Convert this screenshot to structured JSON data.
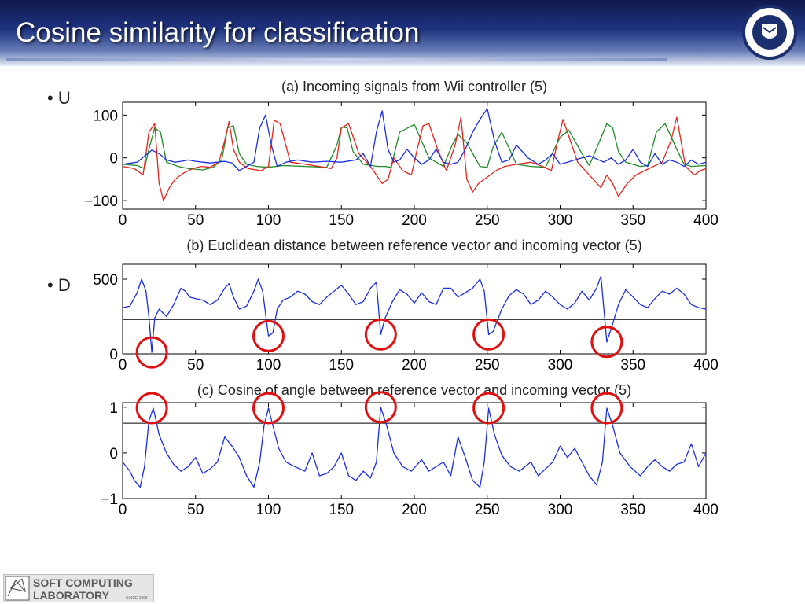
{
  "slide": {
    "title": "Cosine similarity for classification",
    "bullets": [
      {
        "marker": "•",
        "text": "U"
      },
      {
        "marker": "•",
        "text": "D"
      }
    ],
    "footer": {
      "lab_line1": "SOFT COMPUTING",
      "lab_line2": "LABORATORY",
      "since": "SINCE 1995"
    }
  },
  "colors": {
    "signal_red": "#e8231c",
    "signal_green": "#1f8a26",
    "signal_blue": "#1a2ee6",
    "circle": "#e01010",
    "header_dark": "#0f1a4d"
  },
  "chart_data": [
    {
      "type": "line",
      "title": "(a) Incoming signals from Wii controller (5)",
      "xlim": [
        0,
        400
      ],
      "ylim": [
        -120,
        130
      ],
      "xticks": [
        0,
        50,
        100,
        150,
        200,
        250,
        300,
        350,
        400
      ],
      "yticks": [
        -100,
        0,
        100
      ],
      "ytick_labels": [
        "−100",
        "0",
        "100"
      ],
      "series": [
        {
          "color": "#1f8a26",
          "x": [
            0,
            10,
            15,
            18,
            22,
            26,
            30,
            38,
            45,
            55,
            62,
            68,
            72,
            76,
            80,
            85,
            92,
            100,
            110,
            125,
            140,
            147,
            150,
            154,
            158,
            165,
            175,
            180,
            184,
            190,
            200,
            210,
            220,
            226,
            230,
            236,
            245,
            250,
            254,
            260,
            270,
            280,
            290,
            296,
            300,
            306,
            315,
            320,
            326,
            332,
            336,
            340,
            345,
            355,
            360,
            366,
            372,
            380,
            385,
            390,
            400
          ],
          "y": [
            -15,
            -18,
            -25,
            20,
            70,
            60,
            -10,
            -20,
            -25,
            -28,
            -22,
            -5,
            70,
            75,
            10,
            -15,
            -20,
            -22,
            -18,
            -20,
            -22,
            30,
            72,
            70,
            15,
            -15,
            -20,
            -20,
            -22,
            60,
            78,
            0,
            -20,
            30,
            55,
            35,
            -20,
            -22,
            25,
            60,
            -15,
            -20,
            -22,
            20,
            48,
            65,
            10,
            -18,
            30,
            80,
            70,
            15,
            -10,
            -20,
            -18,
            60,
            80,
            20,
            -15,
            -20,
            -18
          ]
        },
        {
          "color": "#e8231c",
          "x": [
            0,
            8,
            14,
            18,
            22,
            25,
            28,
            32,
            36,
            42,
            48,
            54,
            60,
            66,
            70,
            73,
            76,
            80,
            86,
            95,
            100,
            104,
            108,
            115,
            125,
            135,
            143,
            147,
            150,
            155,
            162,
            170,
            174,
            178,
            182,
            186,
            192,
            198,
            202,
            206,
            210,
            216,
            222,
            228,
            232,
            236,
            240,
            244,
            248,
            252,
            256,
            262,
            270,
            280,
            288,
            294,
            298,
            302,
            306,
            312,
            320,
            328,
            332,
            336,
            340,
            346,
            352,
            358,
            364,
            370,
            376,
            380,
            386,
            392,
            396,
            400
          ],
          "y": [
            -20,
            -25,
            -40,
            60,
            80,
            -60,
            -100,
            -70,
            -50,
            -35,
            -25,
            -20,
            -22,
            -10,
            40,
            85,
            20,
            -10,
            -25,
            -30,
            -20,
            88,
            80,
            -10,
            -15,
            -20,
            -25,
            0,
            70,
            80,
            10,
            -20,
            -40,
            -60,
            -50,
            0,
            -30,
            -40,
            20,
            75,
            80,
            20,
            -30,
            30,
            95,
            -50,
            -80,
            -60,
            -50,
            -40,
            -30,
            -20,
            -15,
            -10,
            -20,
            -30,
            35,
            90,
            50,
            -10,
            -40,
            -70,
            -40,
            -60,
            -90,
            -60,
            -40,
            -30,
            -20,
            -10,
            40,
            95,
            -20,
            -40,
            -30,
            -25
          ]
        },
        {
          "color": "#1a2ee6",
          "x": [
            0,
            10,
            20,
            25,
            30,
            36,
            40,
            45,
            50,
            55,
            60,
            65,
            70,
            75,
            80,
            85,
            90,
            94,
            98,
            102,
            106,
            112,
            120,
            130,
            140,
            150,
            160,
            165,
            170,
            174,
            178,
            182,
            186,
            190,
            195,
            200,
            205,
            210,
            215,
            220,
            225,
            230,
            235,
            240,
            245,
            250,
            255,
            260,
            265,
            270,
            278,
            285,
            290,
            295,
            300,
            305,
            310,
            320,
            330,
            335,
            340,
            345,
            350,
            355,
            360,
            365,
            370,
            375,
            380,
            385,
            390,
            395,
            400
          ],
          "y": [
            -15,
            -10,
            18,
            10,
            -5,
            -10,
            -8,
            -5,
            -8,
            -10,
            -12,
            -10,
            -8,
            -12,
            -30,
            -20,
            -10,
            70,
            100,
            30,
            -20,
            -10,
            -5,
            -10,
            -8,
            -10,
            -5,
            10,
            -20,
            60,
            110,
            20,
            -10,
            -5,
            20,
            0,
            -15,
            -5,
            20,
            -10,
            -15,
            -10,
            20,
            60,
            90,
            115,
            40,
            -10,
            -5,
            30,
            0,
            -15,
            -5,
            10,
            -15,
            -10,
            -5,
            5,
            -10,
            0,
            -15,
            -5,
            20,
            -10,
            -20,
            10,
            -15,
            -5,
            -10,
            -20,
            -5,
            -15,
            -10
          ]
        }
      ]
    },
    {
      "type": "line",
      "title": "(b) Euclidean distance between reference vector and incoming vector (5)",
      "xlim": [
        0,
        400
      ],
      "ylim": [
        0,
        600
      ],
      "xticks": [
        0,
        50,
        100,
        150,
        200,
        250,
        300,
        350,
        400
      ],
      "yticks": [
        0,
        500
      ],
      "threshold": 230,
      "circled_x": [
        20,
        100,
        177,
        251,
        332
      ],
      "series": [
        {
          "color": "#1a2ee6",
          "x": [
            0,
            5,
            10,
            13,
            16,
            18,
            20,
            22,
            25,
            30,
            35,
            40,
            43,
            46,
            50,
            55,
            60,
            65,
            70,
            73,
            76,
            80,
            85,
            90,
            93,
            96,
            100,
            103,
            106,
            110,
            115,
            120,
            125,
            130,
            135,
            140,
            145,
            150,
            155,
            160,
            165,
            170,
            174,
            177,
            180,
            185,
            190,
            195,
            200,
            205,
            210,
            215,
            220,
            225,
            230,
            235,
            240,
            245,
            248,
            251,
            254,
            260,
            265,
            270,
            275,
            280,
            285,
            290,
            295,
            300,
            305,
            310,
            315,
            320,
            325,
            328,
            332,
            336,
            340,
            345,
            350,
            355,
            360,
            365,
            370,
            375,
            380,
            385,
            390,
            395,
            400
          ],
          "y": [
            310,
            320,
            410,
            500,
            420,
            250,
            10,
            240,
            300,
            250,
            330,
            440,
            420,
            380,
            370,
            360,
            330,
            360,
            440,
            470,
            380,
            300,
            320,
            420,
            500,
            420,
            120,
            140,
            300,
            360,
            380,
            420,
            400,
            350,
            330,
            380,
            420,
            460,
            400,
            330,
            350,
            440,
            480,
            130,
            240,
            350,
            430,
            400,
            340,
            410,
            350,
            330,
            440,
            440,
            380,
            410,
            440,
            500,
            420,
            130,
            150,
            300,
            390,
            430,
            400,
            330,
            360,
            420,
            380,
            330,
            300,
            340,
            420,
            360,
            440,
            520,
            80,
            200,
            330,
            430,
            380,
            330,
            310,
            370,
            420,
            400,
            440,
            400,
            330,
            310,
            300
          ]
        }
      ]
    },
    {
      "type": "line",
      "title": "(c) Cosine of angle between reference vector and incoming vector (5)",
      "xlim": [
        0,
        400
      ],
      "ylim": [
        -1,
        1.1
      ],
      "xticks": [
        0,
        50,
        100,
        150,
        200,
        250,
        300,
        350,
        400
      ],
      "yticks": [
        -1,
        0,
        1
      ],
      "ytick_labels": [
        "−1",
        "0",
        "1"
      ],
      "threshold": 0.65,
      "circled_x": [
        20,
        100,
        177,
        251,
        332
      ],
      "series": [
        {
          "color": "#1a2ee6",
          "x": [
            0,
            5,
            8,
            12,
            15,
            18,
            21,
            25,
            30,
            35,
            40,
            45,
            50,
            55,
            60,
            65,
            70,
            75,
            80,
            85,
            90,
            94,
            97,
            100,
            103,
            107,
            112,
            118,
            125,
            130,
            135,
            140,
            145,
            150,
            155,
            160,
            165,
            170,
            174,
            177,
            181,
            186,
            192,
            198,
            205,
            210,
            215,
            220,
            225,
            230,
            235,
            240,
            245,
            248,
            251,
            255,
            260,
            266,
            272,
            280,
            285,
            290,
            295,
            300,
            305,
            310,
            315,
            320,
            325,
            329,
            332,
            336,
            341,
            348,
            355,
            360,
            365,
            370,
            375,
            380,
            385,
            390,
            395,
            400
          ],
          "y": [
            -0.2,
            -0.4,
            -0.6,
            -0.75,
            -0.3,
            0.7,
            0.98,
            0.4,
            0.0,
            -0.25,
            -0.4,
            -0.3,
            -0.1,
            -0.45,
            -0.35,
            -0.2,
            0.35,
            0.15,
            -0.1,
            -0.5,
            -0.75,
            -0.2,
            0.6,
            0.98,
            0.6,
            0.1,
            -0.2,
            -0.3,
            -0.4,
            0.0,
            -0.5,
            -0.45,
            -0.3,
            0.0,
            -0.5,
            -0.6,
            -0.4,
            -0.55,
            -0.2,
            1.0,
            0.6,
            0.0,
            -0.3,
            -0.4,
            -0.15,
            -0.4,
            -0.3,
            -0.2,
            -0.5,
            0.35,
            -0.1,
            -0.6,
            -0.75,
            -0.2,
            0.98,
            0.4,
            -0.05,
            -0.3,
            -0.4,
            -0.2,
            -0.5,
            -0.35,
            -0.2,
            0.15,
            -0.1,
            0.1,
            -0.2,
            -0.5,
            -0.7,
            -0.2,
            0.98,
            0.6,
            0.0,
            -0.3,
            -0.5,
            -0.3,
            -0.15,
            -0.3,
            -0.4,
            -0.25,
            -0.2,
            0.2,
            -0.3,
            0.0
          ]
        }
      ]
    }
  ]
}
